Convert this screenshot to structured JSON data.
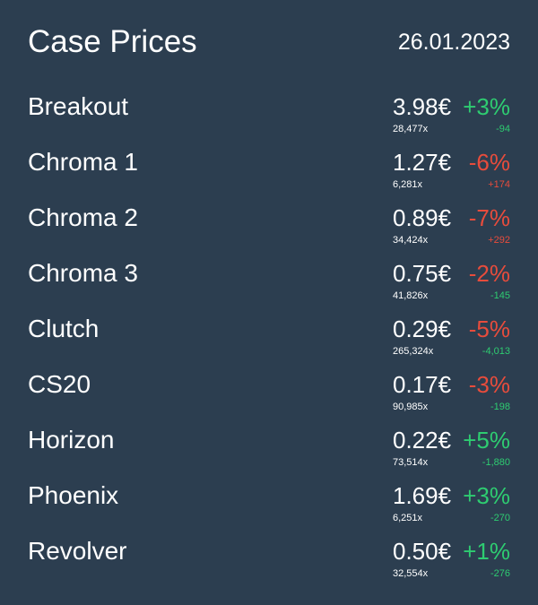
{
  "header": {
    "title": "Case Prices",
    "date": "26.01.2023"
  },
  "items": [
    {
      "name": "Breakout",
      "price": "3.98€",
      "change": "+3%",
      "change_color": "#2ecc71",
      "listings": "28,477x",
      "listings_change": "-94",
      "listings_change_color": "#2ecc71"
    },
    {
      "name": "Chroma 1",
      "price": "1.27€",
      "change": "-6%",
      "change_color": "#e74c3c",
      "listings": "6,281x",
      "listings_change": "+174",
      "listings_change_color": "#e74c3c"
    },
    {
      "name": "Chroma 2",
      "price": "0.89€",
      "change": "-7%",
      "change_color": "#e74c3c",
      "listings": "34,424x",
      "listings_change": "+292",
      "listings_change_color": "#e74c3c"
    },
    {
      "name": "Chroma 3",
      "price": "0.75€",
      "change": "-2%",
      "change_color": "#e74c3c",
      "listings": "41,826x",
      "listings_change": "-145",
      "listings_change_color": "#2ecc71"
    },
    {
      "name": "Clutch",
      "price": "0.29€",
      "change": "-5%",
      "change_color": "#e74c3c",
      "listings": "265,324x",
      "listings_change": "-4,013",
      "listings_change_color": "#2ecc71"
    },
    {
      "name": "CS20",
      "price": "0.17€",
      "change": "-3%",
      "change_color": "#e74c3c",
      "listings": "90,985x",
      "listings_change": "-198",
      "listings_change_color": "#2ecc71"
    },
    {
      "name": "Horizon",
      "price": "0.22€",
      "change": "+5%",
      "change_color": "#2ecc71",
      "listings": "73,514x",
      "listings_change": "-1,880",
      "listings_change_color": "#2ecc71"
    },
    {
      "name": "Phoenix",
      "price": "1.69€",
      "change": "+3%",
      "change_color": "#2ecc71",
      "listings": "6,251x",
      "listings_change": "-270",
      "listings_change_color": "#2ecc71"
    },
    {
      "name": "Revolver",
      "price": "0.50€",
      "change": "+1%",
      "change_color": "#2ecc71",
      "listings": "32,554x",
      "listings_change": "-276",
      "listings_change_color": "#2ecc71"
    }
  ]
}
